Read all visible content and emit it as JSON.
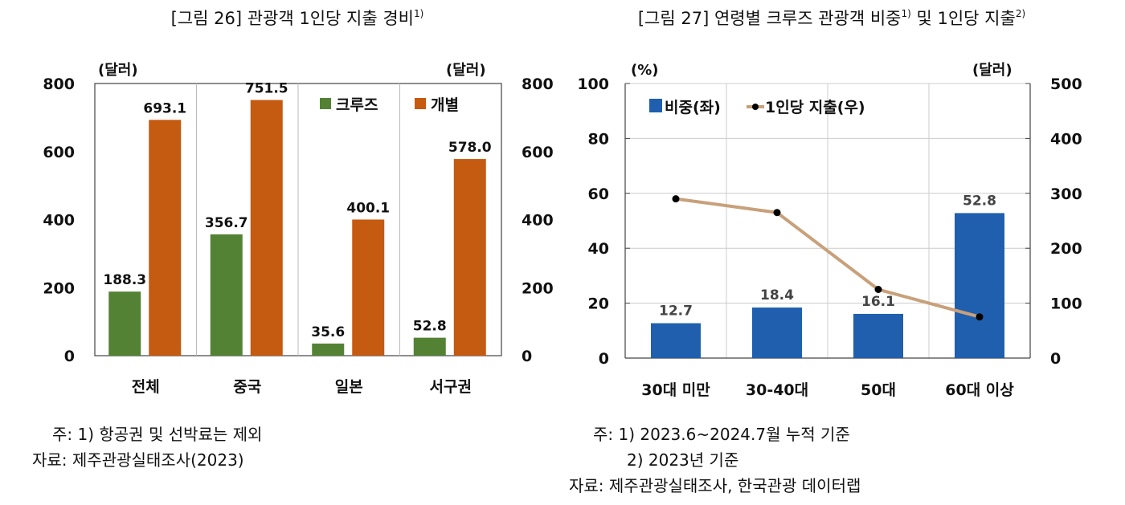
{
  "chart_data": [
    {
      "type": "bar",
      "title": "[그림 26] 관광객 1인당 지출 경비",
      "title_sup": "1)",
      "ylabel_left": "(달러)",
      "ylabel_right": "(달러)",
      "ylim": [
        0,
        800
      ],
      "yticks": [
        "0",
        "200",
        "400",
        "600",
        "800"
      ],
      "categories": [
        "전체",
        "중국",
        "일본",
        "서구권"
      ],
      "series": [
        {
          "name": "크루즈",
          "values": [
            188.3,
            356.7,
            35.6,
            52.8
          ],
          "labels": [
            "188.3",
            "356.7",
            "35.6",
            "52.8"
          ],
          "color": "#548235"
        },
        {
          "name": "개별",
          "values": [
            693.1,
            751.5,
            400.1,
            578.0
          ],
          "labels": [
            "693.1",
            "751.5",
            "400.1",
            "578.0"
          ],
          "color": "#C55A11"
        }
      ],
      "legend": "top-right",
      "grid": "vertical separators",
      "notes": [
        "주: 1) 항공권 및 선박료는 제외",
        "자료: 제주관광실태조사(2023)"
      ]
    },
    {
      "type": "bar+line",
      "title": "[그림 27] 연령별 크루즈 관광객 비중",
      "title_sup1": "1)",
      "title_mid": " 및 1인당 지출",
      "title_sup2": "2)",
      "ylabel_left": "(%)",
      "ylabel_right": "(달러)",
      "ylim_left": [
        0,
        100
      ],
      "ylim_right": [
        0,
        500
      ],
      "yticks_left": [
        "0",
        "20",
        "40",
        "60",
        "80",
        "100"
      ],
      "yticks_right": [
        "0",
        "100",
        "200",
        "300",
        "400",
        "500"
      ],
      "categories": [
        "30대 미만",
        "30-40대",
        "50대",
        "60대 이상"
      ],
      "series": [
        {
          "name": "비중(좌)",
          "type": "bar",
          "axis": "left",
          "values": [
            12.7,
            18.4,
            16.1,
            52.8
          ],
          "labels": [
            "12.7",
            "18.4",
            "16.1",
            "52.8"
          ],
          "color": "#1F5FAD"
        },
        {
          "name": "1인당 지출(우)",
          "type": "line",
          "axis": "right",
          "values": [
            290,
            265,
            125,
            75
          ],
          "color": "#C8A07A",
          "marker_color": "#000000"
        }
      ],
      "legend": "top-left",
      "grid": "horizontal and vertical",
      "notes": [
        "주: 1) 2023.6~2024.7월 누적 기준",
        "2) 2023년 기준",
        "자료: 제주관광실태조사, 한국관광 데이터랩"
      ]
    }
  ]
}
